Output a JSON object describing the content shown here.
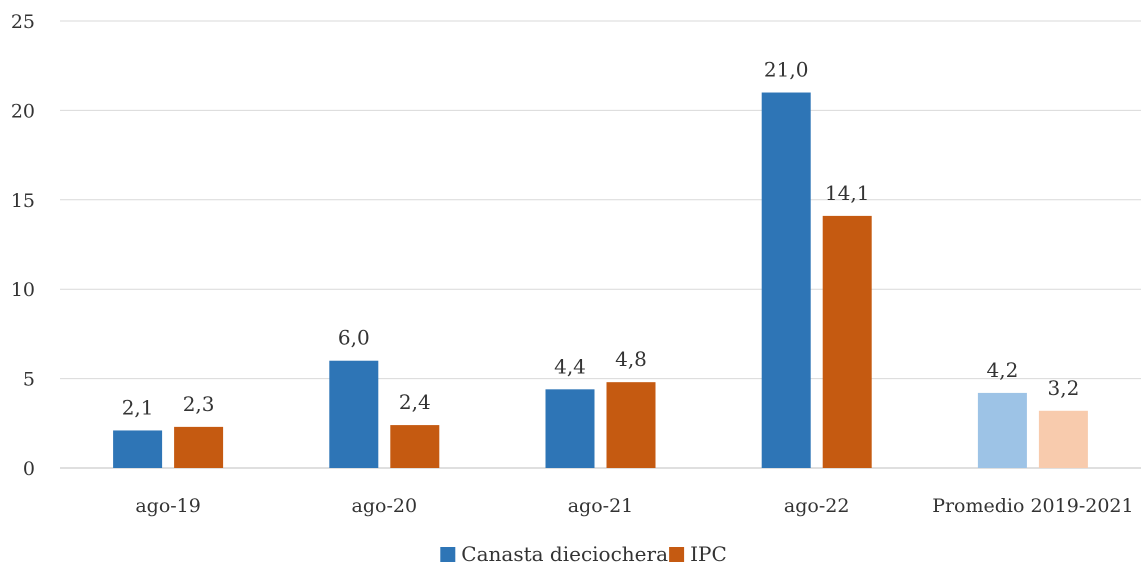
{
  "chart_data": {
    "type": "bar",
    "title": "",
    "xlabel": "",
    "ylabel": "",
    "ylim": [
      0,
      25
    ],
    "yticks": [
      "0",
      "5",
      "10",
      "15",
      "20",
      "25"
    ],
    "grid": true,
    "legend_position": "bottom",
    "categories": [
      "ago-19",
      "ago-20",
      "ago-21",
      "ago-22",
      "Promedio 2019-2021"
    ],
    "series": [
      {
        "name": "Canasta dieciochera",
        "color": "#2E75B6",
        "highlight_color": "#9DC3E6",
        "values": [
          2.1,
          6.0,
          4.4,
          21.0,
          4.2
        ],
        "labels": [
          "2,1",
          "6,0",
          "4,4",
          "21,0",
          "4,2"
        ]
      },
      {
        "name": "IPC",
        "color": "#C55A11",
        "highlight_color": "#F8CBAD",
        "values": [
          2.3,
          2.4,
          4.8,
          14.1,
          3.2
        ],
        "labels": [
          "2,3",
          "2,4",
          "4,8",
          "14,1",
          "3,2"
        ]
      }
    ],
    "highlight_categories": [
      "Promedio 2019-2021"
    ]
  }
}
